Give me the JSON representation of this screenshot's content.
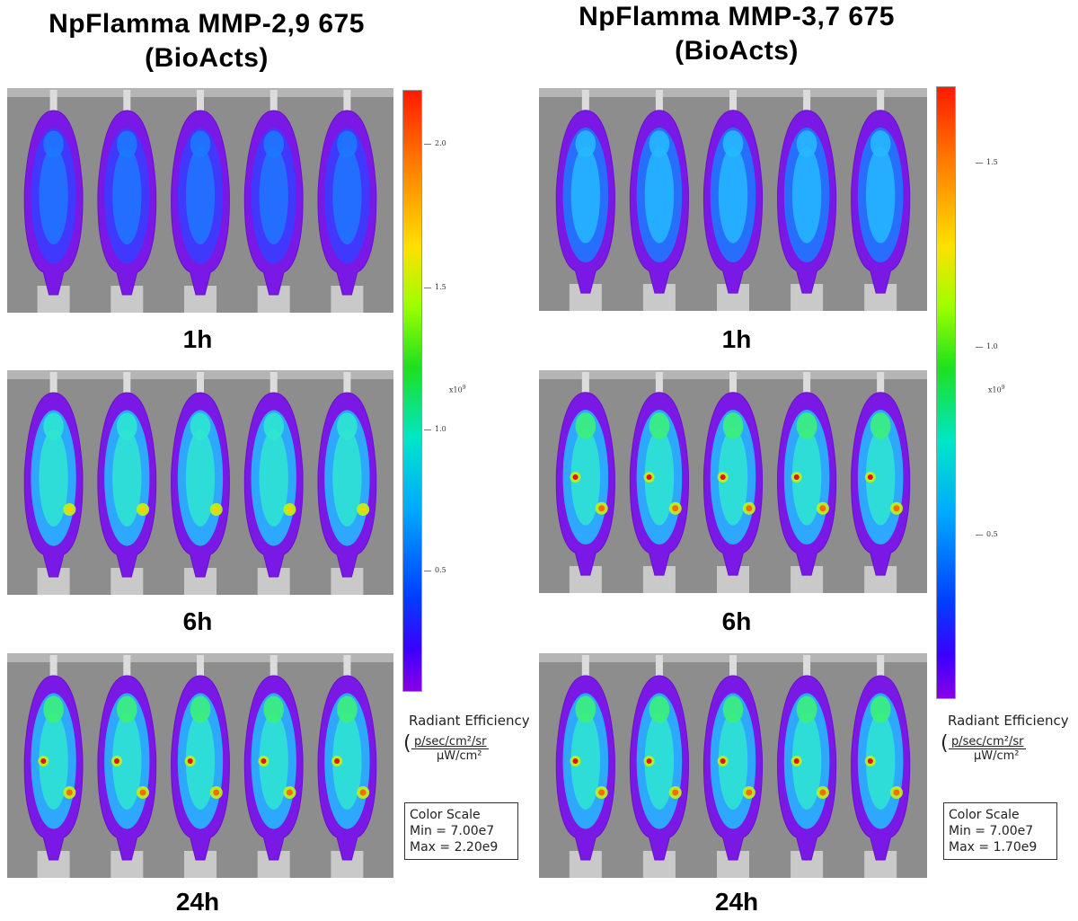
{
  "panels": [
    {
      "title_line1": "NpFlamma  MMP-2,9 675",
      "title_line2": "(BioActs)",
      "timepoints": [
        "1h",
        "6h",
        "24h"
      ],
      "colorbar": {
        "ticks": [
          "2.0",
          "1.5",
          "1.0",
          "0.5"
        ],
        "multiplier": "x10",
        "multiplier_exp": "9"
      },
      "radiant_label": "Radiant Efficiency",
      "unit_numerator": "p/sec/cm²/sr",
      "unit_denominator": "μW/cm²",
      "color_scale": {
        "heading": "Color Scale",
        "min": "Min = 7.00e7",
        "max": "Max = 2.20e9"
      }
    },
    {
      "title_line1": "NpFlamma  MMP-3,7 675",
      "title_line2": "(BioActs)",
      "timepoints": [
        "1h",
        "6h",
        "24h"
      ],
      "colorbar": {
        "ticks": [
          "1.5",
          "1.0",
          "0.5"
        ],
        "multiplier": "x10",
        "multiplier_exp": "9"
      },
      "radiant_label": "Radiant Efficiency",
      "unit_numerator": "p/sec/cm²/sr",
      "unit_denominator": "μW/cm²",
      "color_scale": {
        "heading": "Color Scale",
        "min": "Min = 7.00e7",
        "max": "Max = 1.70e9"
      }
    }
  ]
}
